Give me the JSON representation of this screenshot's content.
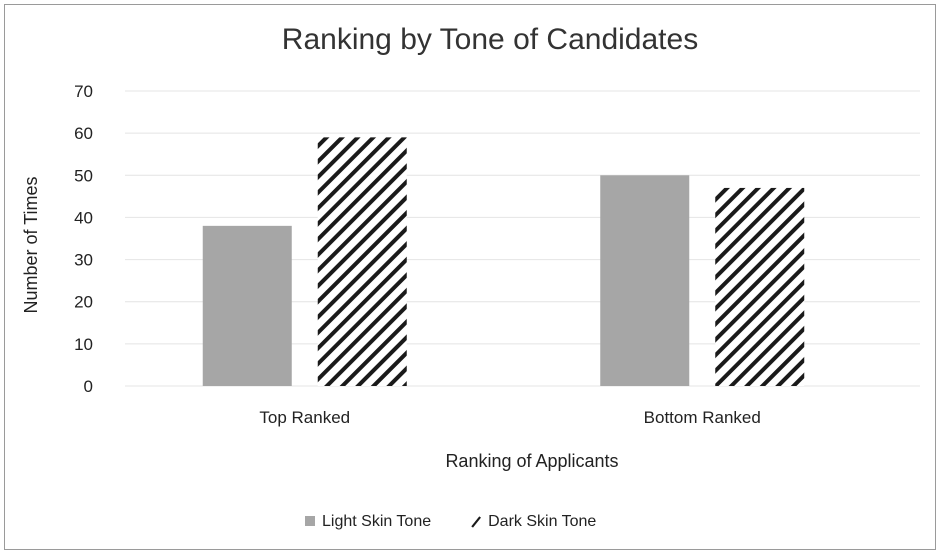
{
  "chart_data": {
    "type": "bar",
    "title": "Ranking by Tone of Candidates",
    "xlabel": "Ranking of Applicants",
    "ylabel": "Number of Times",
    "categories": [
      "Top Ranked",
      "Bottom Ranked"
    ],
    "series": [
      {
        "name": "Light Skin Tone",
        "values": [
          38,
          50
        ],
        "color": "#a6a6a6",
        "pattern": "solid"
      },
      {
        "name": "Dark Skin Tone",
        "values": [
          59,
          47
        ],
        "color": "#1a1a1a",
        "pattern": "diagonal-hatch"
      }
    ],
    "ylim": [
      0,
      70
    ],
    "yticks": [
      0,
      10,
      20,
      30,
      40,
      50,
      60,
      70
    ],
    "grid": true,
    "legend_position": "bottom"
  }
}
